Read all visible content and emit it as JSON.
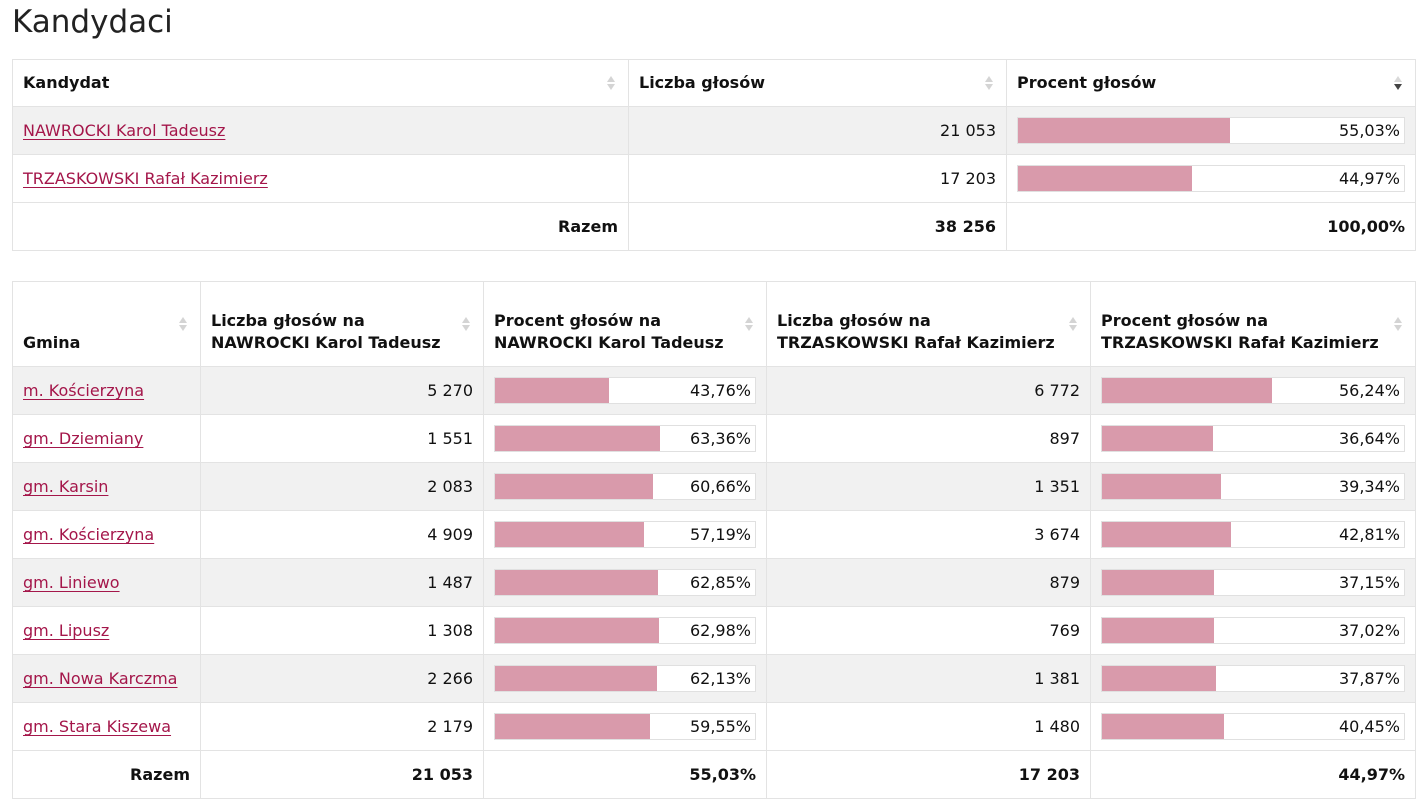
{
  "page_title": "Kandydaci",
  "colors": {
    "bar_fill": "#d99aab",
    "link": "#a4164a",
    "stripe": "#f1f1f1"
  },
  "candidates_table": {
    "headers": {
      "candidate": "Kandydat",
      "votes": "Liczba głosów",
      "percent": "Procent głosów"
    },
    "rows": [
      {
        "name": "NAWROCKI Karol Tadeusz",
        "votes": "21 053",
        "percent_label": "55,03%",
        "percent": 55.03
      },
      {
        "name": "TRZASKOWSKI Rafał Kazimierz",
        "votes": "17 203",
        "percent_label": "44,97%",
        "percent": 44.97
      }
    ],
    "total": {
      "label": "Razem",
      "votes": "38 256",
      "percent": "100,00%"
    }
  },
  "gmina_table": {
    "headers": {
      "gmina": "Gmina",
      "votes_a_line1": "Liczba głosów na",
      "votes_a_line2": "NAWROCKI Karol Tadeusz",
      "pct_a_line1": "Procent głosów na",
      "pct_a_line2": "NAWROCKI Karol Tadeusz",
      "votes_b_line1": "Liczba głosów na",
      "votes_b_line2": "TRZASKOWSKI Rafał Kazimierz",
      "pct_b_line1": "Procent głosów na",
      "pct_b_line2": "TRZASKOWSKI Rafał Kazimierz"
    },
    "rows": [
      {
        "gmina": "m. Kościerzyna",
        "votes_a": "5 270",
        "pct_a_label": "43,76%",
        "pct_a": 43.76,
        "votes_b": "6 772",
        "pct_b_label": "56,24%",
        "pct_b": 56.24
      },
      {
        "gmina": "gm. Dziemiany",
        "votes_a": "1 551",
        "pct_a_label": "63,36%",
        "pct_a": 63.36,
        "votes_b": "897",
        "pct_b_label": "36,64%",
        "pct_b": 36.64
      },
      {
        "gmina": "gm. Karsin",
        "votes_a": "2 083",
        "pct_a_label": "60,66%",
        "pct_a": 60.66,
        "votes_b": "1 351",
        "pct_b_label": "39,34%",
        "pct_b": 39.34
      },
      {
        "gmina": "gm. Kościerzyna",
        "votes_a": "4 909",
        "pct_a_label": "57,19%",
        "pct_a": 57.19,
        "votes_b": "3 674",
        "pct_b_label": "42,81%",
        "pct_b": 42.81
      },
      {
        "gmina": "gm. Liniewo",
        "votes_a": "1 487",
        "pct_a_label": "62,85%",
        "pct_a": 62.85,
        "votes_b": "879",
        "pct_b_label": "37,15%",
        "pct_b": 37.15
      },
      {
        "gmina": "gm. Lipusz",
        "votes_a": "1 308",
        "pct_a_label": "62,98%",
        "pct_a": 62.98,
        "votes_b": "769",
        "pct_b_label": "37,02%",
        "pct_b": 37.02
      },
      {
        "gmina": "gm. Nowa Karczma",
        "votes_a": "2 266",
        "pct_a_label": "62,13%",
        "pct_a": 62.13,
        "votes_b": "1 381",
        "pct_b_label": "37,87%",
        "pct_b": 37.87
      },
      {
        "gmina": "gm. Stara Kiszewa",
        "votes_a": "2 179",
        "pct_a_label": "59,55%",
        "pct_a": 59.55,
        "votes_b": "1 480",
        "pct_b_label": "40,45%",
        "pct_b": 40.45
      }
    ],
    "total": {
      "label": "Razem",
      "votes_a": "21 053",
      "pct_a": "55,03%",
      "votes_b": "17 203",
      "pct_b": "44,97%"
    }
  }
}
